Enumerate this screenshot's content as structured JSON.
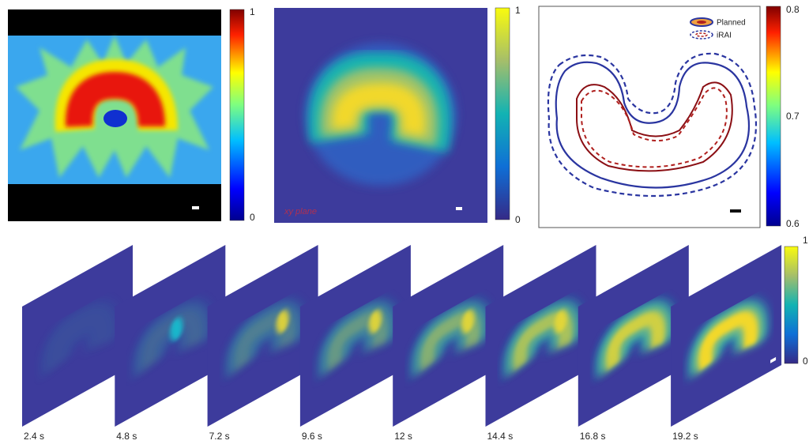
{
  "panels": [
    {
      "colorbar_ticks": [
        "1",
        "0"
      ]
    },
    {
      "label": "xy plane",
      "colorbar_ticks": [
        "1",
        "0"
      ]
    },
    {
      "legend": [
        "Planned",
        "iRAI"
      ],
      "colorbar_ticks": [
        "0.8",
        "0.7",
        "0.6"
      ]
    }
  ],
  "time_series": {
    "frames": [
      "2.4 s",
      "4.8 s",
      "7.2 s",
      "9.6 s",
      "12 s",
      "14.4 s",
      "16.8 s",
      "19.2 s"
    ],
    "colorbar_ticks": [
      "1",
      "0"
    ]
  }
}
